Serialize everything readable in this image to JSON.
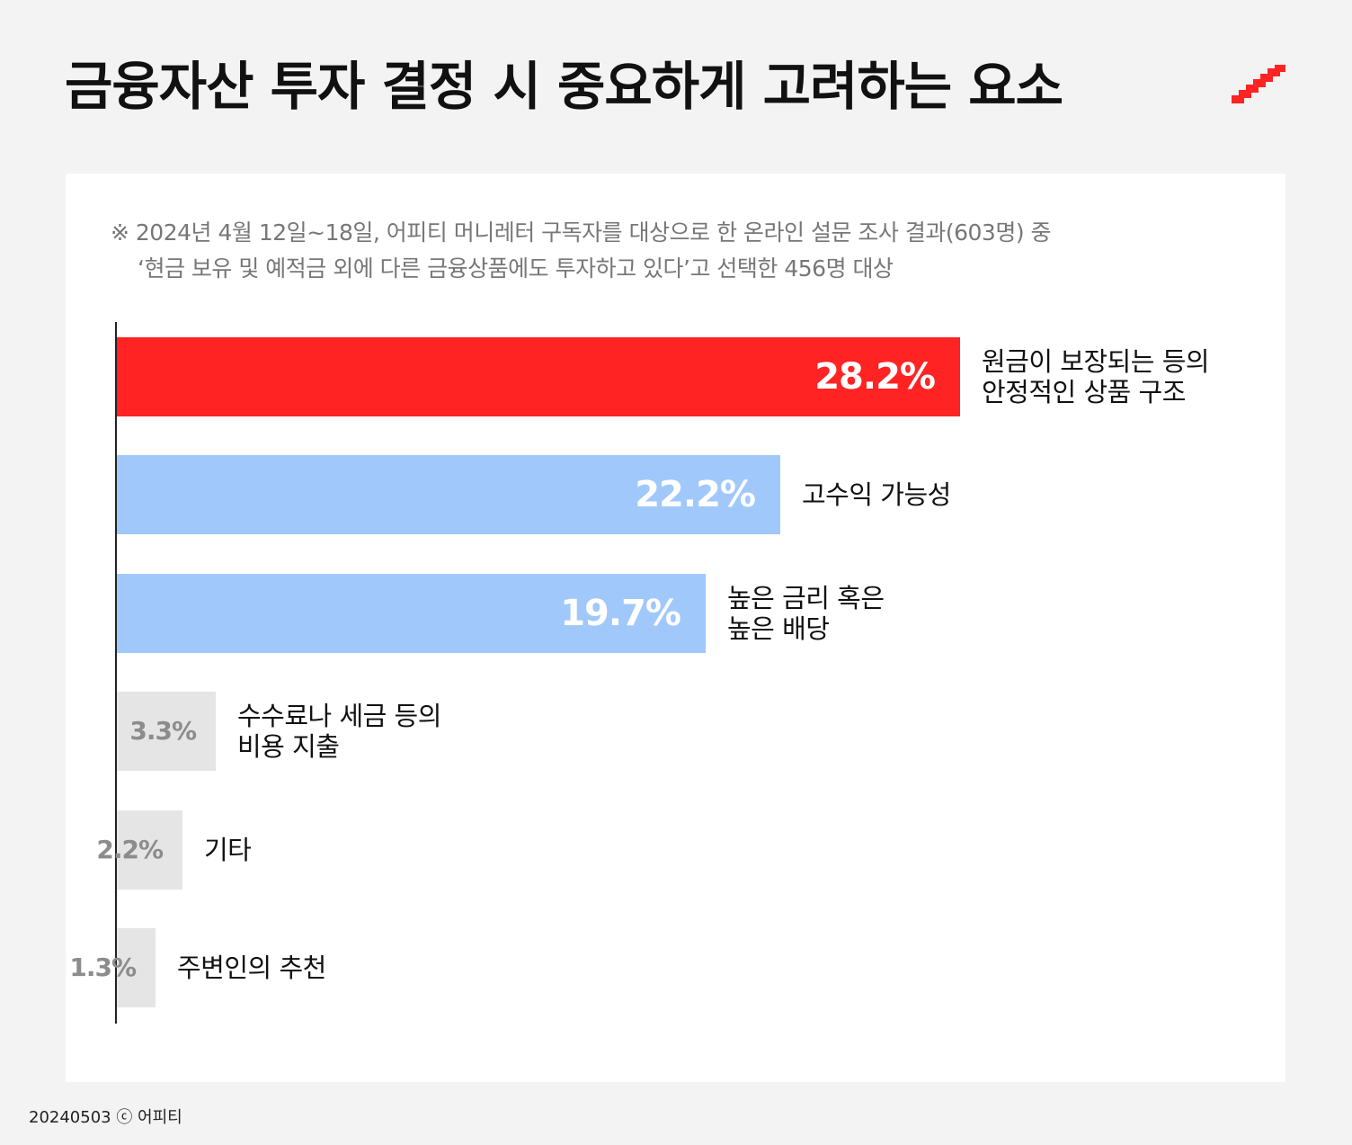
{
  "title": "금융자산 투자 결정 시 중요하게 고려하는 요소",
  "note": {
    "line1": "※ 2024년 4월 12일~18일, 어피티 머니레터 구독자를 대상으로 한 온라인 설문 조사 결과(603명) 중",
    "line2": "‘현금 보유 및 예적금 외에 다른 금융상품에도 투자하고 있다’고 선택한 456명 대상"
  },
  "colors": {
    "highlight": "#ff2323",
    "secondary": "#a0c8fb",
    "minor": "#e5e5e5",
    "minor_text": "#8c8c8c"
  },
  "chart_data": {
    "type": "bar",
    "orientation": "horizontal",
    "unit": "%",
    "xlim": [
      0,
      28.2
    ],
    "categories": [
      "원금이 보장되는 등의\n안정적인 상품 구조",
      "고수익 가능성",
      "높은 금리 혹은\n높은 배당",
      "수수료나 세금 등의\n비용 지출",
      "기타",
      "주변인의 추천"
    ],
    "values": [
      28.2,
      22.2,
      19.7,
      3.3,
      2.2,
      1.3
    ],
    "value_labels": [
      "28.2%",
      "22.2%",
      "19.7%",
      "3.3%",
      "2.2%",
      "1.3%"
    ]
  },
  "footer": "20240503 ⓒ 어피티"
}
